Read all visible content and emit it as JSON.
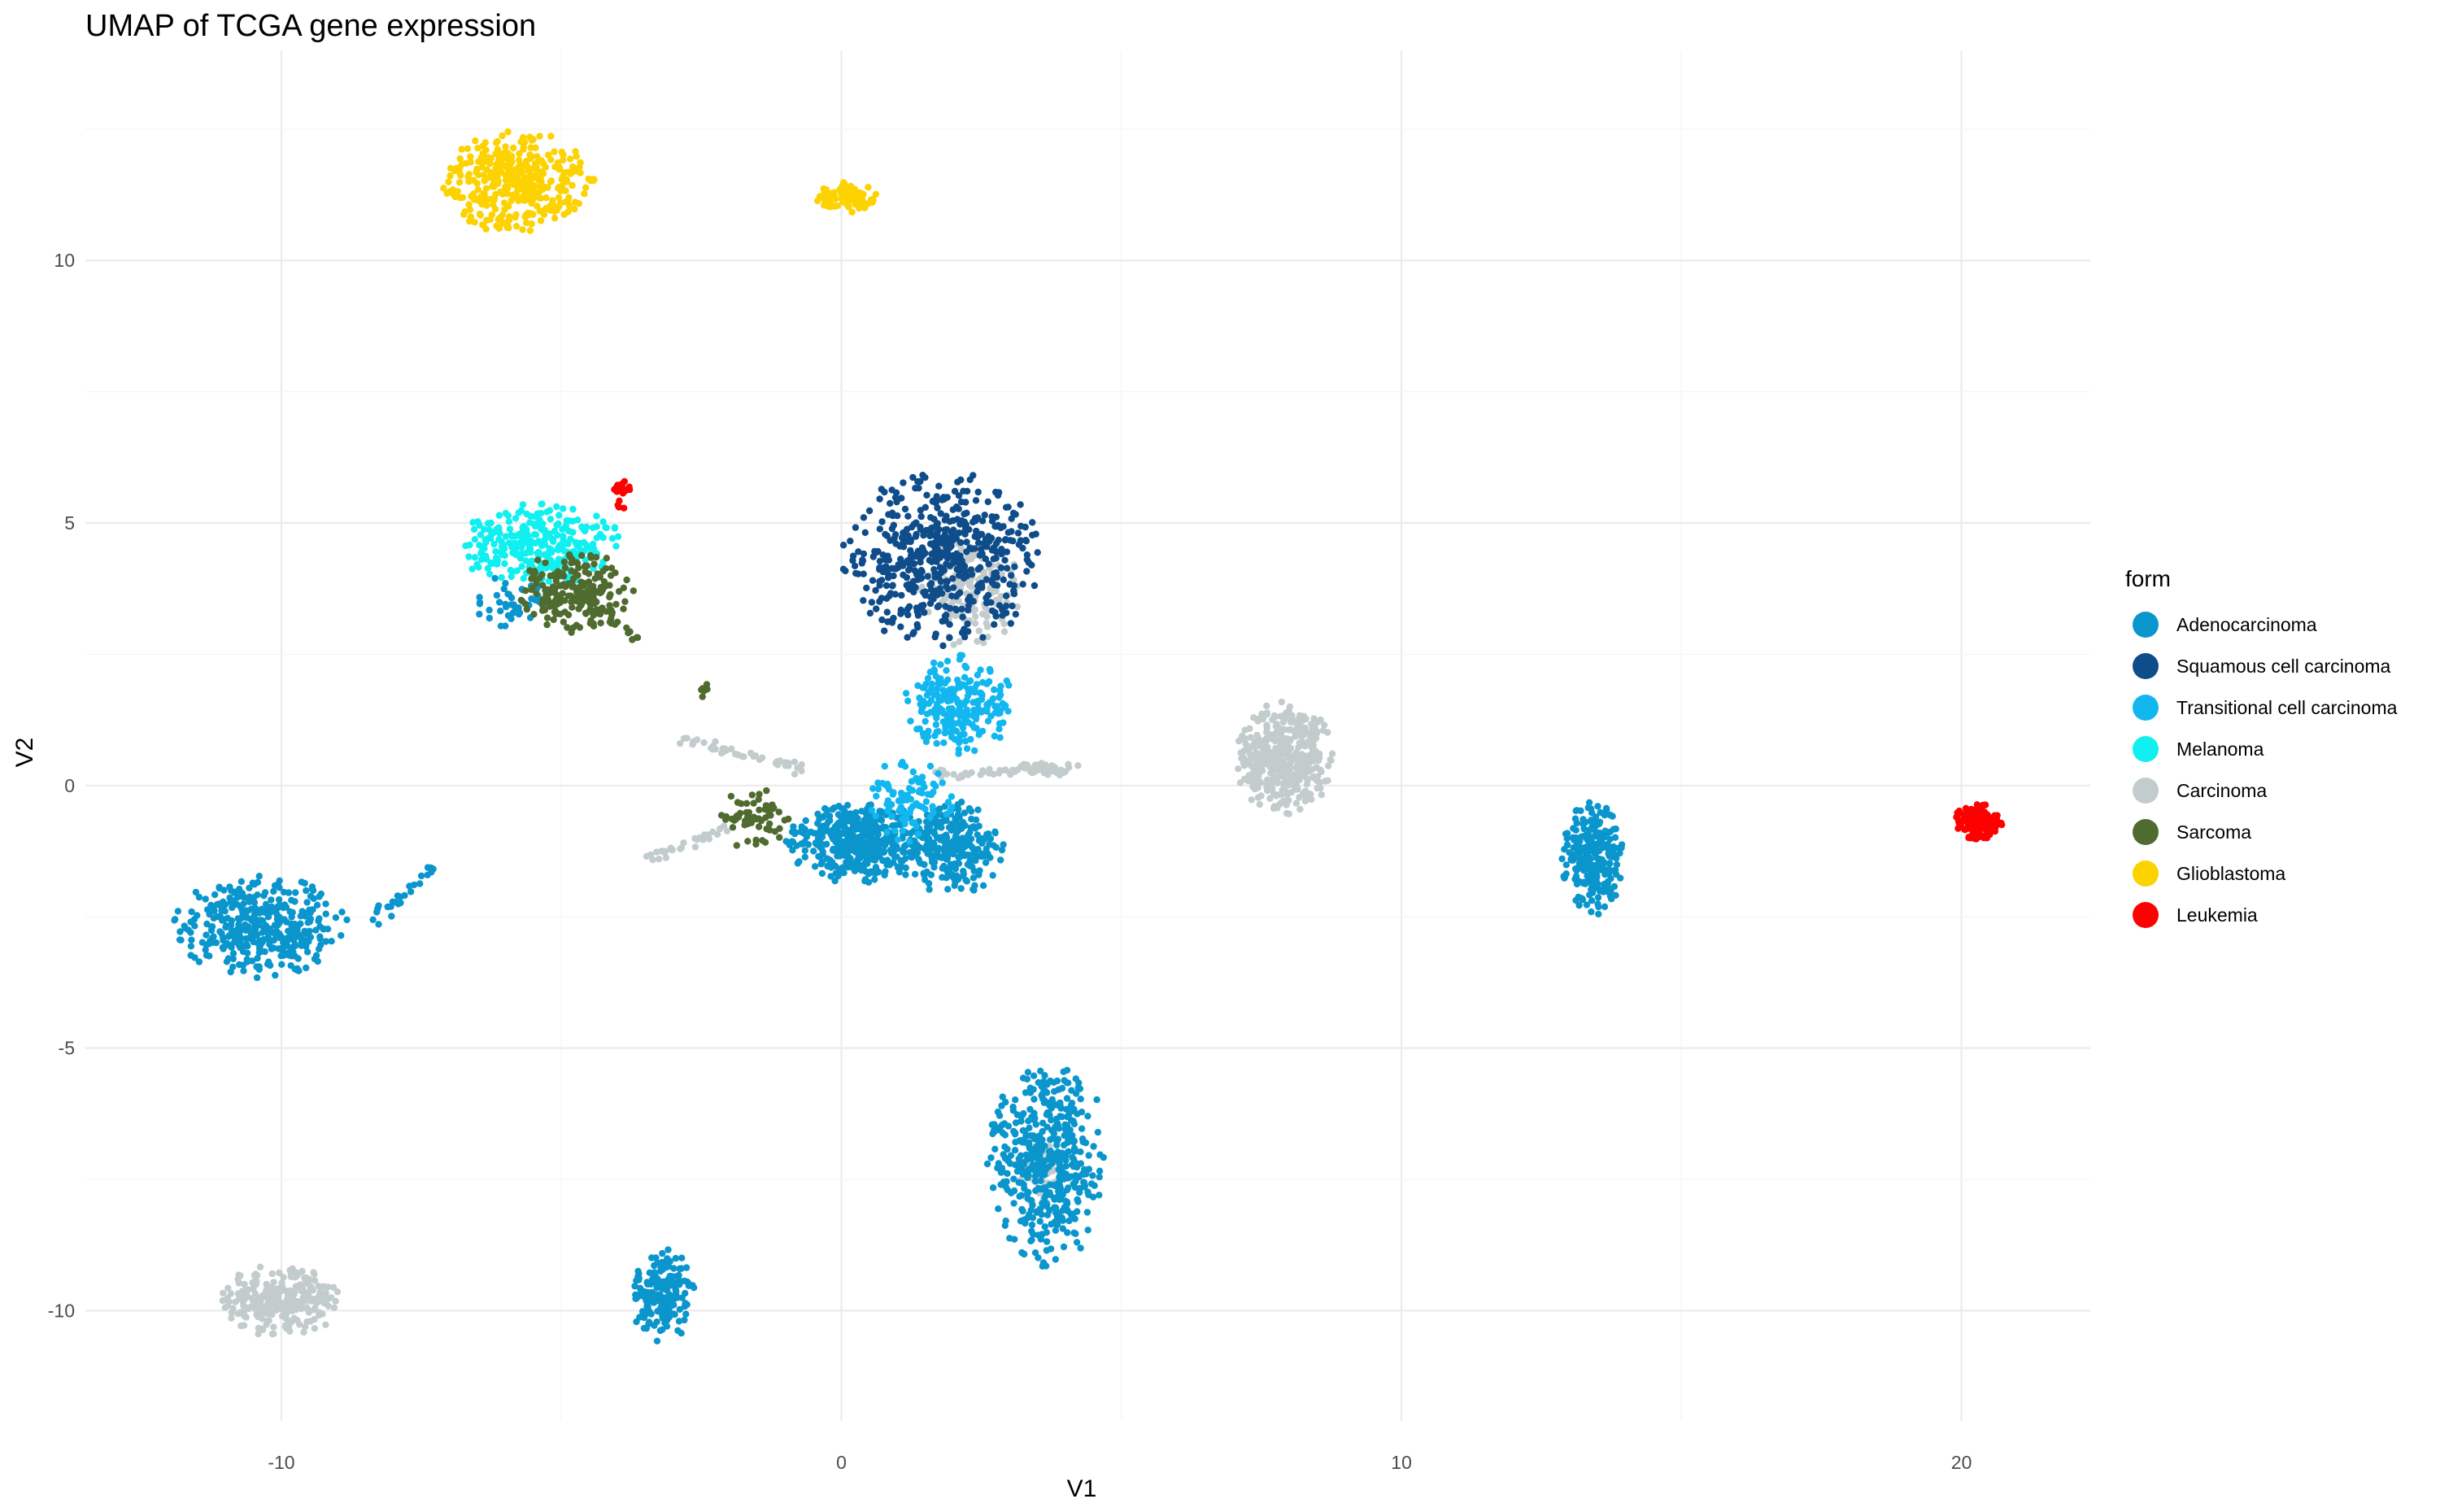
{
  "chart_data": {
    "type": "scatter",
    "title": "UMAP of TCGA gene expression",
    "xlabel": "V1",
    "ylabel": "V2",
    "xlim": [
      -13.5,
      22.3
    ],
    "ylim": [
      -12.1,
      14.0
    ],
    "xticks": [
      -10,
      0,
      10,
      20
    ],
    "xtick_labels": [
      "-10",
      "0",
      "10",
      "20"
    ],
    "yticks": [
      10,
      5,
      0,
      -5,
      -10
    ],
    "ytick_labels": [
      "10",
      "5",
      "0",
      "-5",
      "-10"
    ],
    "grid": true,
    "legend": {
      "title": "form",
      "position": "right",
      "entries": [
        {
          "name": "Adenocarcinoma",
          "color": "#0a96cc"
        },
        {
          "name": "Squamous cell carcinoma",
          "color": "#0f4c8a"
        },
        {
          "name": "Transitional cell carcinoma",
          "color": "#12b7f0"
        },
        {
          "name": "Melanoma",
          "color": "#10f0f0"
        },
        {
          "name": "Carcinoma",
          "color": "#c3cccc"
        },
        {
          "name": "Sarcoma",
          "color": "#4f6b2f"
        },
        {
          "name": "Glioblastoma",
          "color": "#fcd200"
        },
        {
          "name": "Leukemia",
          "color": "#ff0000"
        }
      ]
    },
    "clusters": [
      {
        "series": "Adenocarcinoma",
        "cx": -10.4,
        "cy": -2.7,
        "sx": 0.8,
        "sy": 0.5,
        "n": 380
      },
      {
        "series": "Adenocarcinoma",
        "cx": -3.2,
        "cy": -9.7,
        "sx": 0.3,
        "sy": 0.45,
        "n": 180
      },
      {
        "series": "Adenocarcinoma",
        "cx": 0.3,
        "cy": -1.1,
        "sx": 0.65,
        "sy": 0.4,
        "n": 420
      },
      {
        "series": "Adenocarcinoma",
        "cx": 2.0,
        "cy": -1.2,
        "sx": 0.45,
        "sy": 0.45,
        "n": 260
      },
      {
        "series": "Adenocarcinoma",
        "cx": 3.7,
        "cy": -7.2,
        "sx": 0.55,
        "sy": 1.0,
        "n": 480
      },
      {
        "series": "Adenocarcinoma",
        "cx": 13.4,
        "cy": -1.4,
        "sx": 0.28,
        "sy": 0.55,
        "n": 250
      },
      {
        "series": "Adenocarcinoma",
        "cx": -5.9,
        "cy": 3.5,
        "sx": 0.35,
        "sy": 0.25,
        "n": 40
      },
      {
        "series": "Squamous cell carcinoma",
        "cx": 1.8,
        "cy": 4.3,
        "sx": 0.9,
        "sy": 0.85,
        "n": 520
      },
      {
        "series": "Transitional cell carcinoma",
        "cx": 2.1,
        "cy": 1.5,
        "sx": 0.5,
        "sy": 0.5,
        "n": 230
      },
      {
        "series": "Transitional cell carcinoma",
        "cx": 1.2,
        "cy": -0.3,
        "sx": 0.4,
        "sy": 0.4,
        "n": 90
      },
      {
        "series": "Melanoma",
        "cx": -5.4,
        "cy": 4.6,
        "sx": 0.75,
        "sy": 0.4,
        "n": 280
      },
      {
        "series": "Carcinoma",
        "cx": -10.0,
        "cy": -9.8,
        "sx": 0.55,
        "sy": 0.35,
        "n": 260
      },
      {
        "series": "Carcinoma",
        "cx": 7.9,
        "cy": 0.5,
        "sx": 0.45,
        "sy": 0.55,
        "n": 420
      },
      {
        "series": "Carcinoma",
        "cx": 2.3,
        "cy": 3.8,
        "sx": 0.45,
        "sy": 0.6,
        "n": 170
      },
      {
        "series": "Carcinoma",
        "cx": 3.6,
        "cy": -7.4,
        "sx": 0.25,
        "sy": 0.4,
        "n": 50
      },
      {
        "series": "Carcinoma",
        "cx": 3.5,
        "cy": 0.3,
        "sx": 0.3,
        "sy": 0.08,
        "n": 40
      },
      {
        "series": "Sarcoma",
        "cx": -4.8,
        "cy": 3.7,
        "sx": 0.55,
        "sy": 0.4,
        "n": 190
      },
      {
        "series": "Sarcoma",
        "cx": -1.6,
        "cy": -0.6,
        "sx": 0.35,
        "sy": 0.3,
        "n": 60
      },
      {
        "series": "Glioblastoma",
        "cx": -5.8,
        "cy": 11.5,
        "sx": 0.7,
        "sy": 0.5,
        "n": 380
      },
      {
        "series": "Glioblastoma",
        "cx": 0.1,
        "cy": 11.2,
        "sx": 0.3,
        "sy": 0.15,
        "n": 90
      },
      {
        "series": "Leukemia",
        "cx": 20.3,
        "cy": -0.7,
        "sx": 0.22,
        "sy": 0.18,
        "n": 160
      },
      {
        "series": "Leukemia",
        "cx": -3.9,
        "cy": 5.6,
        "sx": 0.08,
        "sy": 0.22,
        "n": 25
      }
    ],
    "trails": [
      {
        "series": "Adenocarcinoma",
        "x1": -8.4,
        "y1": -2.6,
        "x2": -7.2,
        "y2": -1.5,
        "n": 25
      },
      {
        "series": "Carcinoma",
        "x1": -2.9,
        "y1": 0.9,
        "x2": -0.6,
        "y2": 0.3,
        "n": 45
      },
      {
        "series": "Carcinoma",
        "x1": -3.5,
        "y1": -1.45,
        "x2": -2.0,
        "y2": -0.8,
        "n": 30
      },
      {
        "series": "Carcinoma",
        "x1": 1.5,
        "y1": 0.2,
        "x2": 4.3,
        "y2": 0.35,
        "n": 40
      },
      {
        "series": "Sarcoma",
        "x1": -4.8,
        "y1": 3.8,
        "x2": -3.6,
        "y2": 2.8,
        "n": 35
      },
      {
        "series": "Sarcoma",
        "x1": -2.5,
        "y1": 1.8,
        "x2": -2.4,
        "y2": 1.9,
        "n": 6
      }
    ]
  }
}
